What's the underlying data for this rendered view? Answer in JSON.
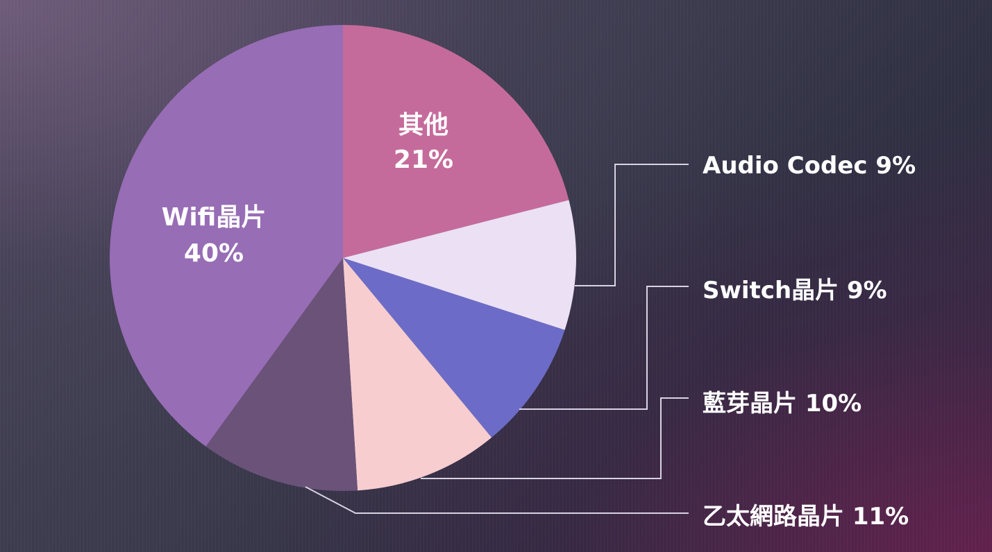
{
  "chart_data": {
    "type": "pie",
    "start_angle_deg": 0,
    "direction": "clockwise",
    "slices": [
      {
        "label": "其他",
        "value": 21,
        "value_label": "21%",
        "color": "#c56b9b",
        "label_mode": "inside"
      },
      {
        "label": "Audio Codec",
        "value": 9,
        "value_label": "9%",
        "color": "#ece0f5",
        "label_mode": "callout"
      },
      {
        "label": "Switch晶片",
        "value": 9,
        "value_label": "9%",
        "color": "#6c6cc8",
        "label_mode": "callout"
      },
      {
        "label": "藍芽晶片",
        "value": 10,
        "value_label": "10%",
        "color": "#f7cdd0",
        "label_mode": "callout"
      },
      {
        "label": "乙太網路晶片",
        "value": 11,
        "value_label": "11%",
        "color": "#6a5278",
        "label_mode": "callout"
      },
      {
        "label": "Wifi晶片",
        "value": 40,
        "value_label": "40%",
        "color": "#976db5",
        "label_mode": "inside"
      }
    ]
  },
  "colors": {
    "label_text": "#ffffff",
    "leader_line": "#d9d3e3"
  }
}
